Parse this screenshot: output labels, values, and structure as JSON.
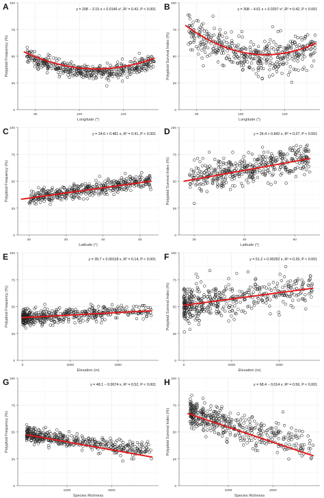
{
  "figure": {
    "panels_count": 8
  },
  "chart_data": [
    {
      "panel": "A",
      "type": "scatter",
      "equation": "y = 208 − 3.15 x + 0.0146 x², R² = 0.42, P < 0.001",
      "xlabel": "Longitude (°)",
      "ylabel": "Polyploid Frequency (%)",
      "xlim": [
        72,
        136
      ],
      "xticks": [
        80,
        100,
        120
      ],
      "xticklabels": [
        "80",
        "100",
        "120"
      ],
      "ylim": [
        0,
        100
      ],
      "yticks": [
        0,
        25,
        50,
        75,
        100
      ],
      "fit": {
        "kind": "quadratic",
        "coef": [
          208,
          -3.15,
          0.0146
        ],
        "x_range": [
          75,
          134
        ]
      },
      "points": {
        "n": 430,
        "shape": "quad",
        "params": [
          205,
          -3.15,
          0.0146
        ],
        "noise": 3.5,
        "x_range": [
          76,
          134
        ],
        "seed": 11
      }
    },
    {
      "panel": "B",
      "type": "scatter",
      "equation": "y = 308 − 4.61 x + 0.0207 x², R² = 0.42, P < 0.001",
      "xlabel": "Longitude (°)",
      "ylabel": "Polyploid Survival Index (%)",
      "xlim": [
        72,
        136
      ],
      "xticks": [
        80,
        100,
        120
      ],
      "xticklabels": [
        "80",
        "100",
        "120"
      ],
      "ylim": [
        0,
        100
      ],
      "yticks": [
        0,
        25,
        50,
        75,
        100
      ],
      "fit": {
        "kind": "quadratic",
        "coef": [
          308,
          -4.61,
          0.0207
        ],
        "x_range": [
          75,
          134
        ]
      },
      "points": {
        "n": 430,
        "shape": "quad",
        "params": [
          306,
          -4.61,
          0.0207
        ],
        "noise": 8,
        "x_range": [
          76,
          134
        ],
        "seed": 22
      }
    },
    {
      "panel": "C",
      "type": "scatter",
      "equation": "y = 24.6 + 0.481 x, R² = 0.41, P < 0.001",
      "xlabel": "Latitude (°)",
      "ylabel": "Polyploid Frequency (%)",
      "xlim": [
        17,
        55
      ],
      "xticks": [
        20,
        30,
        40,
        50
      ],
      "xticklabels": [
        "20",
        "30",
        "40",
        "50"
      ],
      "ylim": [
        0,
        100
      ],
      "yticks": [
        0,
        25,
        50,
        75,
        100
      ],
      "fit": {
        "kind": "linear",
        "coef": [
          24.6,
          0.481
        ],
        "x_range": [
          18,
          53
        ]
      },
      "points": {
        "n": 430,
        "shape": "lin",
        "params": [
          24.6,
          0.481
        ],
        "noise": 3.5,
        "x_range": [
          20,
          53
        ],
        "seed": 33
      }
    },
    {
      "panel": "D",
      "type": "scatter",
      "equation": "y = 26.4 + 0.842 x, R² = 0.37, P < 0.001",
      "xlabel": "Latitude (°)",
      "ylabel": "Polyploid Survival Index (%)",
      "xlim": [
        27,
        55
      ],
      "xticks": [
        30,
        40,
        50
      ],
      "xticklabels": [
        "30",
        "40",
        "50"
      ],
      "ylim": [
        0,
        100
      ],
      "yticks": [
        0,
        25,
        50,
        75,
        100
      ],
      "fit": {
        "kind": "linear",
        "coef": [
          26.4,
          0.842
        ],
        "x_range": [
          28,
          53
        ]
      },
      "points": {
        "n": 430,
        "shape": "lin",
        "params": [
          26.4,
          0.842
        ],
        "noise": 7,
        "x_range": [
          29,
          53
        ],
        "seed": 44
      }
    },
    {
      "panel": "E",
      "type": "scatter",
      "equation": "y = 39.7 + 0.00118 x, R² = 0.14, P < 0.001",
      "xlabel": "Elevation (m)",
      "ylabel": "Polyploid Frequency (%)",
      "xlim": [
        -200,
        5700
      ],
      "xticks": [
        0,
        2000,
        4000
      ],
      "xticklabels": [
        "0",
        "2000",
        "4000"
      ],
      "ylim": [
        0,
        100
      ],
      "yticks": [
        0,
        25,
        50,
        75,
        100
      ],
      "fit": {
        "kind": "linear",
        "coef": [
          39.7,
          0.00118
        ],
        "x_range": [
          0,
          5400
        ]
      },
      "points": {
        "n": 460,
        "shape": "lin",
        "params": [
          39.7,
          0.00118
        ],
        "noise": 3.5,
        "x_range": [
          0,
          5400
        ],
        "skew": 1.8,
        "seed": 55
      }
    },
    {
      "panel": "F",
      "type": "scatter",
      "equation": "y = 51.2 + 0.00292 x, R² = 0.26, P < 0.001",
      "xlabel": "Elevation (m)",
      "ylabel": "Polyploid Survival Index (%)",
      "xlim": [
        -200,
        5700
      ],
      "xticks": [
        0,
        2000,
        4000
      ],
      "xticklabels": [
        "0",
        "2000",
        "4000"
      ],
      "ylim": [
        0,
        100
      ],
      "yticks": [
        0,
        25,
        50,
        75,
        100
      ],
      "fit": {
        "kind": "linear",
        "coef": [
          51.2,
          0.00292
        ],
        "x_range": [
          0,
          5400
        ]
      },
      "points": {
        "n": 460,
        "shape": "lin",
        "params": [
          51.2,
          0.00292
        ],
        "noise": 8,
        "x_range": [
          0,
          5400
        ],
        "skew": 1.8,
        "seed": 66
      }
    },
    {
      "panel": "G",
      "type": "scatter",
      "equation": "y = 48.1 − 0.0074 x, R² = 0.52, P < 0.001",
      "xlabel": "Species Richness",
      "ylabel": "Polyploid Frequency (%)",
      "xlim": [
        -100,
        3050
      ],
      "xticks": [
        1000,
        2000
      ],
      "xticklabels": [
        "1000",
        "2000"
      ],
      "ylim": [
        0,
        100
      ],
      "yticks": [
        0,
        25,
        50,
        75,
        100
      ],
      "fit": {
        "kind": "linear",
        "coef": [
          48.1,
          -0.0074
        ],
        "x_range": [
          100,
          2900
        ]
      },
      "points": {
        "n": 430,
        "shape": "lin",
        "params": [
          48.1,
          -0.0054
        ],
        "noise": 3.5,
        "x_range": [
          100,
          2900
        ],
        "skew": 1.7,
        "seed": 77
      }
    },
    {
      "panel": "H",
      "type": "scatter",
      "equation": "y = 68.4 − 0.014 x, R² = 0.56, P < 0.001",
      "xlabel": "Species Richness",
      "ylabel": "Polyploid Survival Index (%)",
      "xlim": [
        -100,
        3050
      ],
      "xticks": [
        1000,
        2000
      ],
      "xticklabels": [
        "1000",
        "2000"
      ],
      "ylim": [
        0,
        100
      ],
      "yticks": [
        0,
        25,
        50,
        75,
        100
      ],
      "fit": {
        "kind": "linear",
        "coef": [
          68.4,
          -0.014
        ],
        "x_range": [
          100,
          2900
        ]
      },
      "points": {
        "n": 430,
        "shape": "lin",
        "params": [
          69,
          -0.0125
        ],
        "noise": 7,
        "x_range": [
          150,
          2900
        ],
        "skew": 1.7,
        "seed": 88
      }
    }
  ],
  "colors": {
    "point": "#222222",
    "fit": "#e41a1c",
    "grid_major": "#e6e6e6",
    "grid_minor": "#f2f2f2",
    "axis": "#555555",
    "text": "#333333"
  }
}
